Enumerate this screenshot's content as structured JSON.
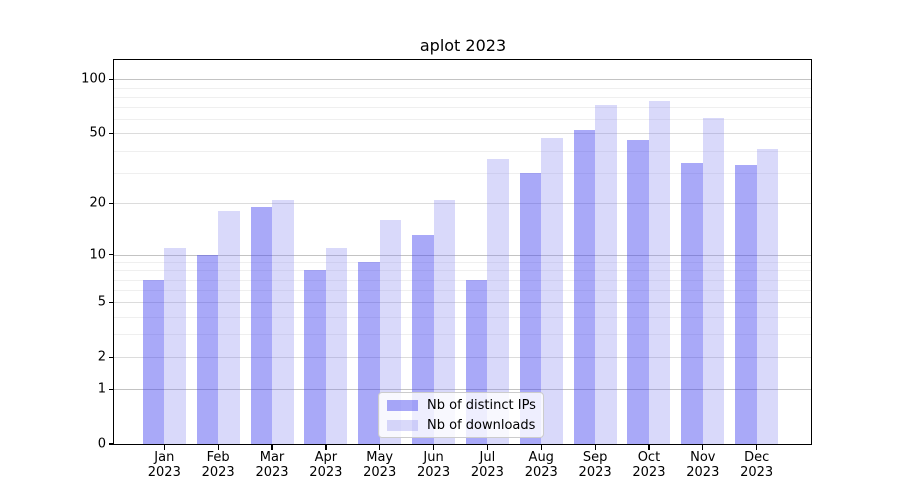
{
  "title": "aplot 2023",
  "legend": {
    "items": [
      {
        "label": "Nb of distinct IPs",
        "color": "rgba(64,64,240,0.45)"
      },
      {
        "label": "Nb of downloads",
        "color": "rgba(130,130,240,0.30)"
      }
    ]
  },
  "axis": {
    "ytick_labels": [
      "100",
      "50",
      "20",
      "10",
      "5",
      "2",
      "1",
      "0"
    ],
    "year_label": "2023"
  },
  "chart_data": {
    "type": "bar",
    "title": "aplot 2023",
    "xlabel": "",
    "ylabel": "",
    "scale": "log10(1+y)",
    "grid": true,
    "legend_position": "lower center",
    "categories": [
      "Jan",
      "Feb",
      "Mar",
      "Apr",
      "May",
      "Jun",
      "Jul",
      "Aug",
      "Sep",
      "Oct",
      "Nov",
      "Dec"
    ],
    "year": "2023",
    "series": [
      {
        "name": "Nb of distinct IPs",
        "color": "rgba(64,64,240,0.45)",
        "solid_color": "#a9a9f8",
        "values": [
          7,
          10,
          19,
          8,
          9,
          13,
          7,
          30,
          52,
          46,
          34,
          33
        ]
      },
      {
        "name": "Nb of downloads",
        "color": "rgba(130,130,240,0.30)",
        "solid_color": "#dbdbfa",
        "values": [
          11,
          18,
          21,
          11,
          16,
          21,
          36,
          47,
          72,
          76,
          61,
          41
        ]
      }
    ],
    "yticks": [
      100,
      50,
      20,
      10,
      5,
      2,
      1,
      0
    ],
    "decade_ticks": [
      100,
      10,
      1
    ],
    "minor_yticks": [
      90,
      80,
      70,
      60,
      40,
      30,
      9,
      8,
      7,
      6,
      4,
      3
    ],
    "ylim": [
      0,
      128
    ]
  }
}
